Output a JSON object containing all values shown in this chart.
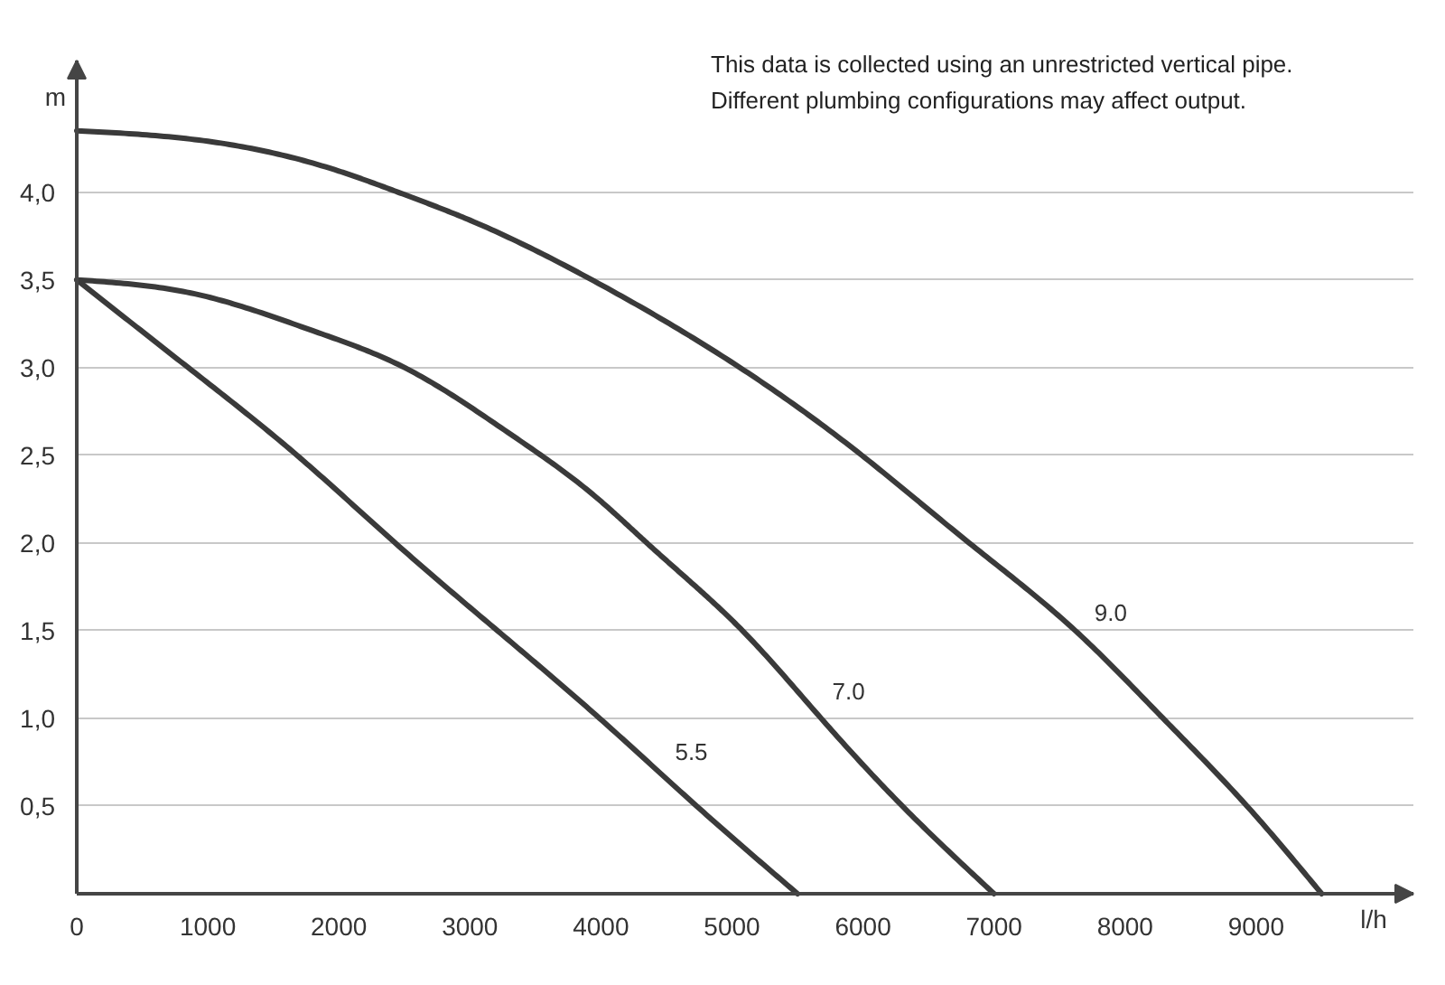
{
  "chart_data": {
    "type": "line",
    "annotations": [
      "This data is collected using an unrestricted vertical pipe.",
      "Different plumbing configurations may affect output."
    ],
    "xlabel": "l/h",
    "ylabel": "m",
    "xlim": [
      0,
      10200
    ],
    "ylim": [
      0,
      4.75
    ],
    "xticks": [
      0,
      1000,
      2000,
      3000,
      4000,
      5000,
      6000,
      7000,
      8000,
      9000
    ],
    "yticks": [
      {
        "value": 0.5,
        "label": "0,5"
      },
      {
        "value": 1.0,
        "label": "1,0"
      },
      {
        "value": 1.5,
        "label": "1,5"
      },
      {
        "value": 2.0,
        "label": "2,0"
      },
      {
        "value": 2.5,
        "label": "2,5"
      },
      {
        "value": 3.0,
        "label": "3,0"
      },
      {
        "value": 3.5,
        "label": "3,5"
      },
      {
        "value": 4.0,
        "label": "4,0"
      }
    ],
    "grid": "y",
    "line_style": "solid",
    "series": [
      {
        "name": "5.5",
        "color": "#3a3a3a",
        "x": [
          0,
          850,
          1680,
          2430,
          3210,
          3990,
          4730,
          5500
        ],
        "values": [
          3.5,
          3.0,
          2.5,
          2.0,
          1.5,
          1.0,
          0.5,
          0
        ]
      },
      {
        "name": "7.0",
        "color": "#3a3a3a",
        "x": [
          0,
          900,
          1800,
          2500,
          3290,
          3980,
          4350,
          4650,
          5080,
          5680,
          6300,
          7000
        ],
        "values": [
          3.5,
          3.42,
          3.21,
          3.0,
          2.63,
          2.25,
          2.0,
          1.8,
          1.5,
          1.0,
          0.5,
          0
        ]
      },
      {
        "name": "9.0",
        "color": "#3a3a3a",
        "x": [
          0,
          1000,
          2000,
          2450,
          3000,
          3980,
          5060,
          5990,
          6810,
          7620,
          8290,
          8930,
          9500
        ],
        "values": [
          4.35,
          4.29,
          4.12,
          4.0,
          3.84,
          3.48,
          3.0,
          2.5,
          2.0,
          1.5,
          1.0,
          0.5,
          0
        ]
      }
    ]
  }
}
